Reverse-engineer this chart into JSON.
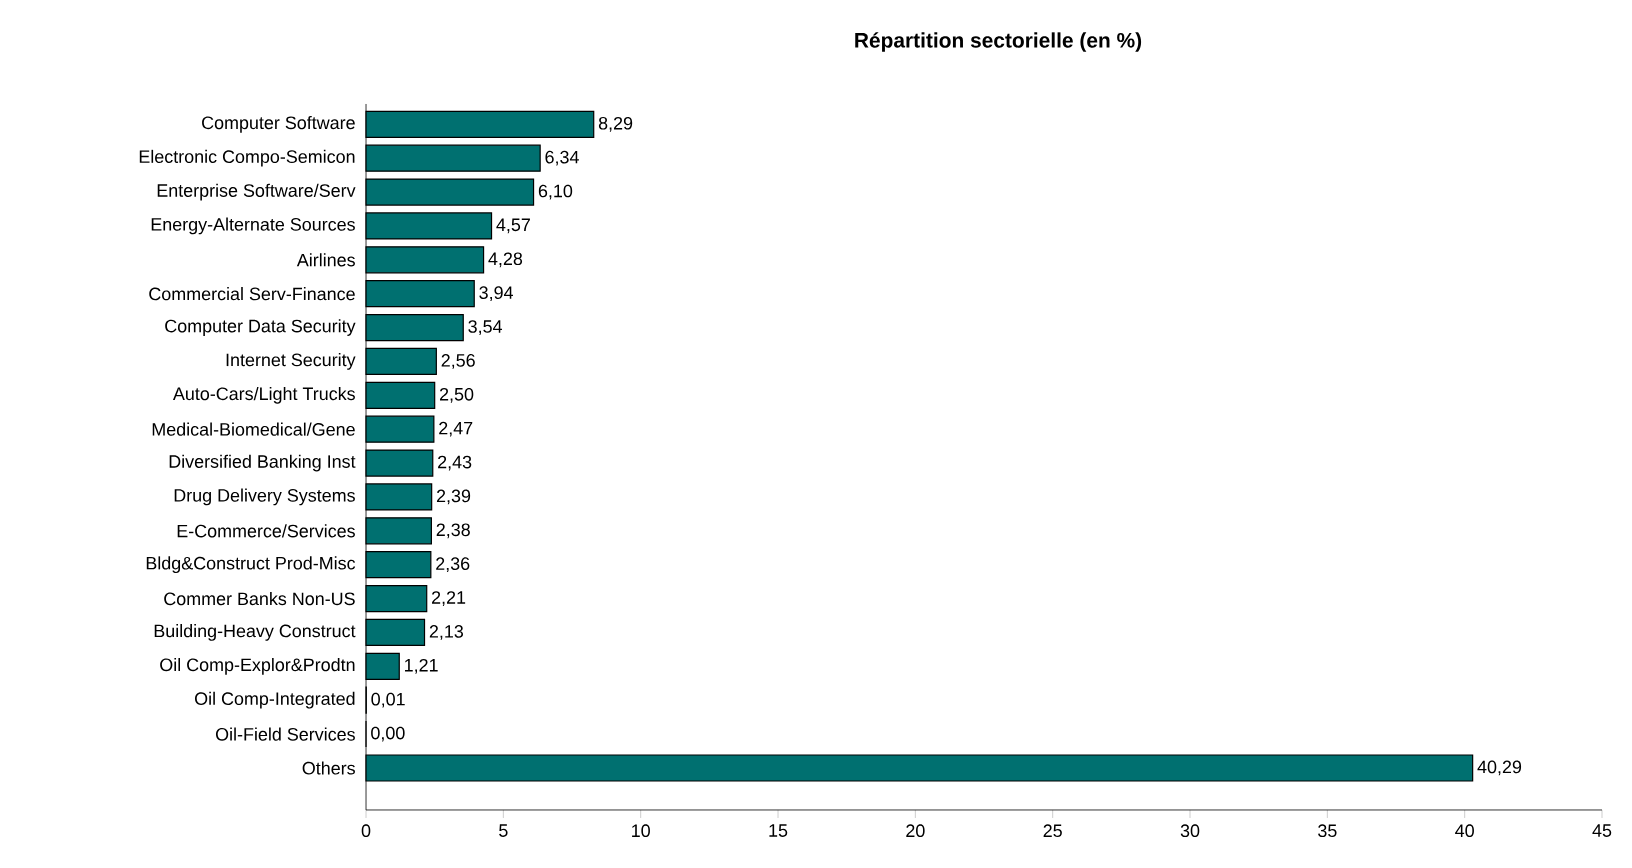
{
  "chart_data": {
    "type": "bar",
    "orientation": "horizontal",
    "title": "Répartition sectorielle (en %)",
    "categories": [
      "Computer Software",
      "Electronic Compo-Semicon",
      "Enterprise Software/Serv",
      "Energy-Alternate Sources",
      "Airlines",
      "Commercial Serv-Finance",
      "Computer Data Security",
      "Internet Security",
      "Auto-Cars/Light Trucks",
      "Medical-Biomedical/Gene",
      "Diversified Banking Inst",
      "Drug Delivery Systems",
      "E-Commerce/Services",
      "Bldg&Construct Prod-Misc",
      "Commer Banks Non-US",
      "Building-Heavy Construct",
      "Oil Comp-Explor&Prodtn",
      "Oil Comp-Integrated",
      "Oil-Field Services",
      "Others"
    ],
    "values": [
      8.29,
      6.34,
      6.1,
      4.57,
      4.28,
      3.94,
      3.54,
      2.56,
      2.5,
      2.47,
      2.43,
      2.39,
      2.38,
      2.36,
      2.21,
      2.13,
      1.21,
      0.01,
      0.0,
      40.29
    ],
    "value_labels": [
      "8,29",
      "6,34",
      "6,10",
      "4,57",
      "4,28",
      "3,94",
      "3,54",
      "2,56",
      "2,50",
      "2,47",
      "2,43",
      "2,39",
      "2,38",
      "2,36",
      "2,21",
      "2,13",
      "1,21",
      "0,01",
      "0,00",
      "40,29"
    ],
    "color": "#007070",
    "xlim": [
      0,
      45
    ],
    "xticks": [
      0,
      5,
      10,
      15,
      20,
      25,
      30,
      35,
      40,
      45
    ],
    "grid": false
  }
}
